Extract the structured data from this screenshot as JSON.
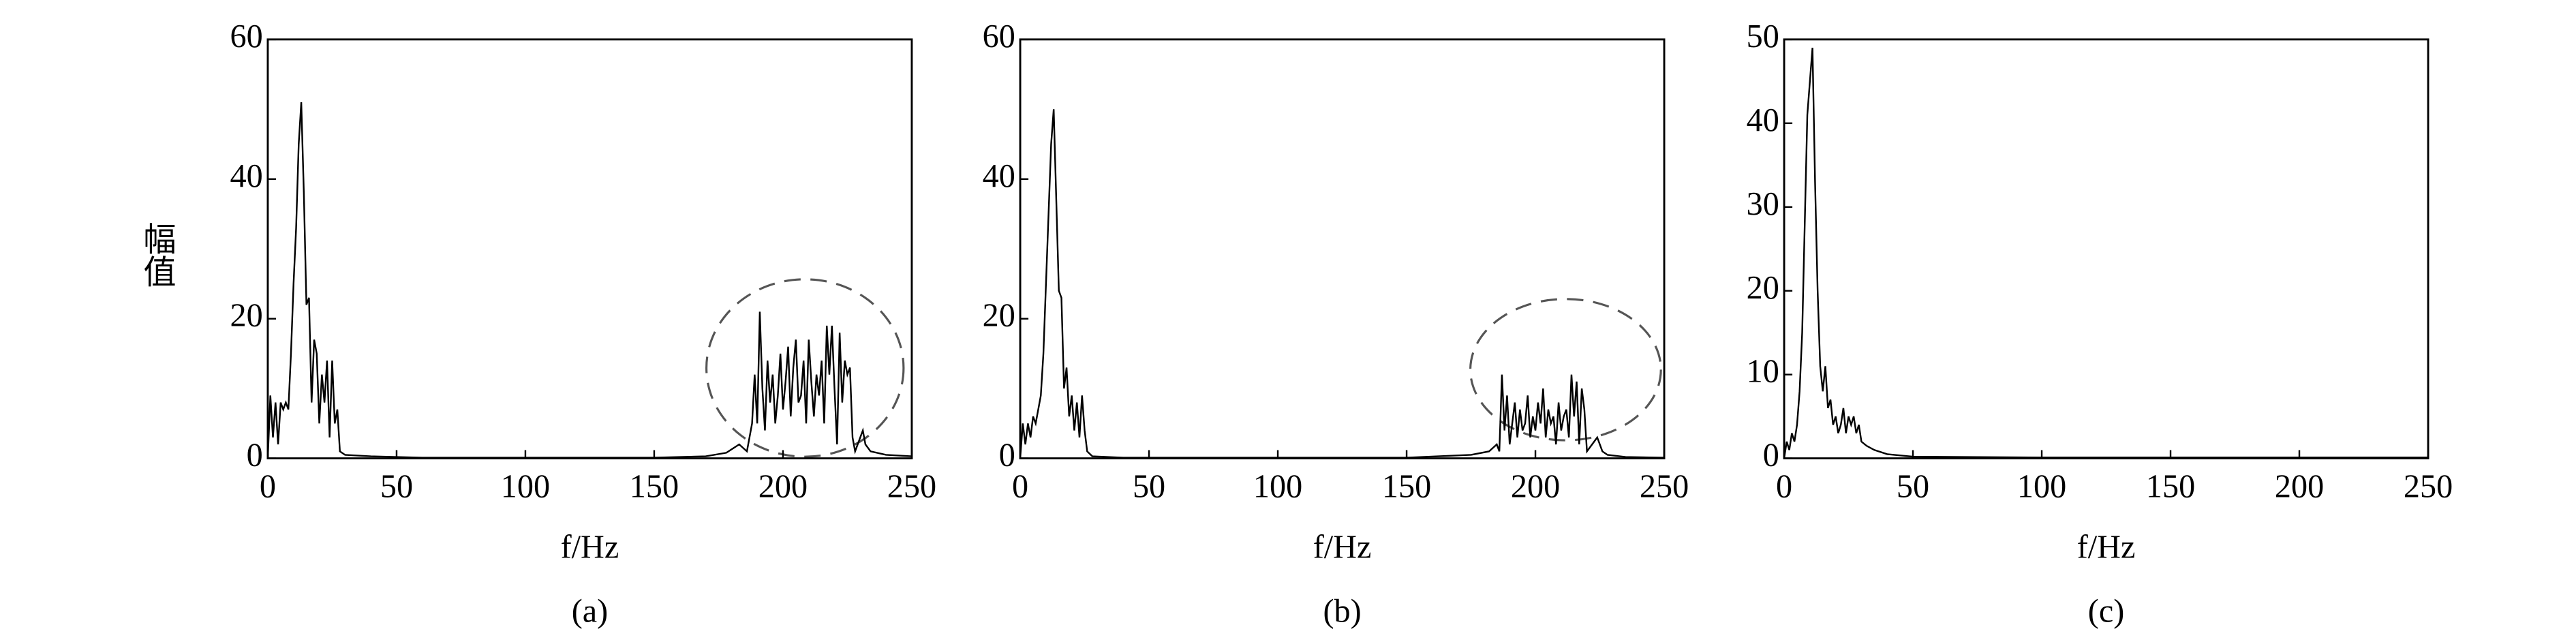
{
  "chart_data": [
    {
      "type": "line",
      "ylabel": "幅值",
      "xlabel": "f/Hz",
      "caption": "(a)",
      "color": "#000000",
      "x": [
        0,
        1,
        2,
        3,
        4,
        5,
        6,
        7,
        8,
        9,
        10,
        11,
        12,
        13,
        14,
        15,
        16,
        17,
        18,
        19,
        20,
        21,
        22,
        23,
        24,
        25,
        26,
        27,
        28,
        30,
        40,
        60,
        150,
        170,
        178,
        183,
        186,
        188,
        189,
        190,
        191,
        192,
        193,
        194,
        195,
        196,
        197,
        198,
        199,
        200,
        201,
        202,
        203,
        204,
        205,
        206,
        207,
        208,
        209,
        210,
        211,
        212,
        213,
        214,
        215,
        216,
        217,
        218,
        219,
        220,
        221,
        222,
        223,
        224,
        225,
        226,
        227,
        228,
        229,
        230,
        231,
        232,
        234,
        240,
        250
      ],
      "values": [
        0,
        9,
        3,
        8,
        2,
        8,
        7,
        8,
        7,
        15,
        25,
        33,
        45,
        51,
        38,
        22,
        23,
        8,
        17,
        15,
        5,
        12,
        8,
        14,
        3,
        14,
        5,
        7,
        1,
        0.5,
        0.3,
        0.1,
        0.1,
        0.3,
        0.8,
        2,
        1,
        5,
        12,
        5,
        21,
        10,
        4,
        14,
        8,
        12,
        5,
        9,
        15,
        7,
        11,
        16,
        6,
        13,
        17,
        8,
        9,
        14,
        5,
        17,
        11,
        6,
        12,
        9,
        14,
        5,
        19,
        12,
        19,
        10,
        2,
        18,
        8,
        14,
        12,
        13,
        3,
        1,
        2,
        3,
        4,
        2,
        1,
        0.5,
        0.3
      ],
      "xlim": [
        0,
        250
      ],
      "xticks": [
        0,
        50,
        100,
        150,
        200,
        250
      ],
      "ylim": [
        0,
        60
      ],
      "yticks": [
        0,
        20,
        40,
        60
      ]
    },
    {
      "type": "line",
      "xlabel": "f/Hz",
      "caption": "(b)",
      "color": "#000000",
      "x": [
        0,
        1,
        2,
        3,
        4,
        5,
        6,
        7,
        8,
        9,
        10,
        11,
        12,
        13,
        14,
        15,
        16,
        17,
        18,
        19,
        20,
        21,
        22,
        23,
        24,
        25,
        26,
        28,
        40,
        150,
        175,
        182,
        185,
        186,
        187,
        188,
        189,
        190,
        191,
        192,
        193,
        194,
        195,
        196,
        197,
        198,
        199,
        200,
        201,
        202,
        203,
        204,
        205,
        206,
        207,
        208,
        209,
        210,
        211,
        212,
        213,
        214,
        215,
        216,
        217,
        218,
        219,
        220,
        222,
        224,
        226,
        228,
        235,
        250
      ],
      "values": [
        0,
        5,
        2,
        5,
        3,
        6,
        5,
        7,
        9,
        15,
        25,
        35,
        45,
        50,
        37,
        24,
        23,
        10,
        13,
        6,
        9,
        4,
        8,
        3,
        9,
        4,
        1,
        0.3,
        0.1,
        0.1,
        0.5,
        1,
        2,
        1,
        12,
        4,
        9,
        2,
        5,
        8,
        3,
        7,
        4,
        5,
        9,
        3,
        6,
        4,
        8,
        5,
        10,
        3,
        7,
        5,
        6,
        2,
        8,
        4,
        6,
        7,
        3,
        12,
        6,
        11,
        2,
        10,
        7,
        1,
        2,
        3,
        1,
        0.5,
        0.2,
        0.1
      ],
      "xlim": [
        0,
        250
      ],
      "xticks": [
        0,
        50,
        100,
        150,
        200,
        250
      ],
      "ylim": [
        0,
        60
      ],
      "yticks": [
        0,
        20,
        40,
        60
      ]
    },
    {
      "type": "line",
      "xlabel": "f/Hz",
      "caption": "(c)",
      "color": "#000000",
      "x": [
        0,
        1,
        2,
        3,
        4,
        5,
        6,
        7,
        8,
        9,
        10,
        11,
        12,
        13,
        14,
        15,
        16,
        17,
        18,
        19,
        20,
        21,
        22,
        23,
        24,
        25,
        26,
        27,
        28,
        29,
        30,
        32,
        35,
        40,
        50,
        100,
        250
      ],
      "values": [
        0,
        2,
        1,
        3,
        2,
        4,
        8,
        15,
        28,
        41,
        45,
        49,
        33,
        20,
        11,
        8,
        11,
        6,
        7,
        4,
        5,
        3,
        4,
        6,
        3,
        5,
        4,
        5,
        3,
        4,
        2,
        1.5,
        1,
        0.5,
        0.2,
        0.1,
        0.1
      ],
      "xlim": [
        0,
        250
      ],
      "xticks": [
        0,
        50,
        100,
        150,
        200,
        250
      ],
      "ylim": [
        0,
        50
      ],
      "yticks": [
        0,
        10,
        20,
        30,
        40,
        50
      ]
    }
  ]
}
